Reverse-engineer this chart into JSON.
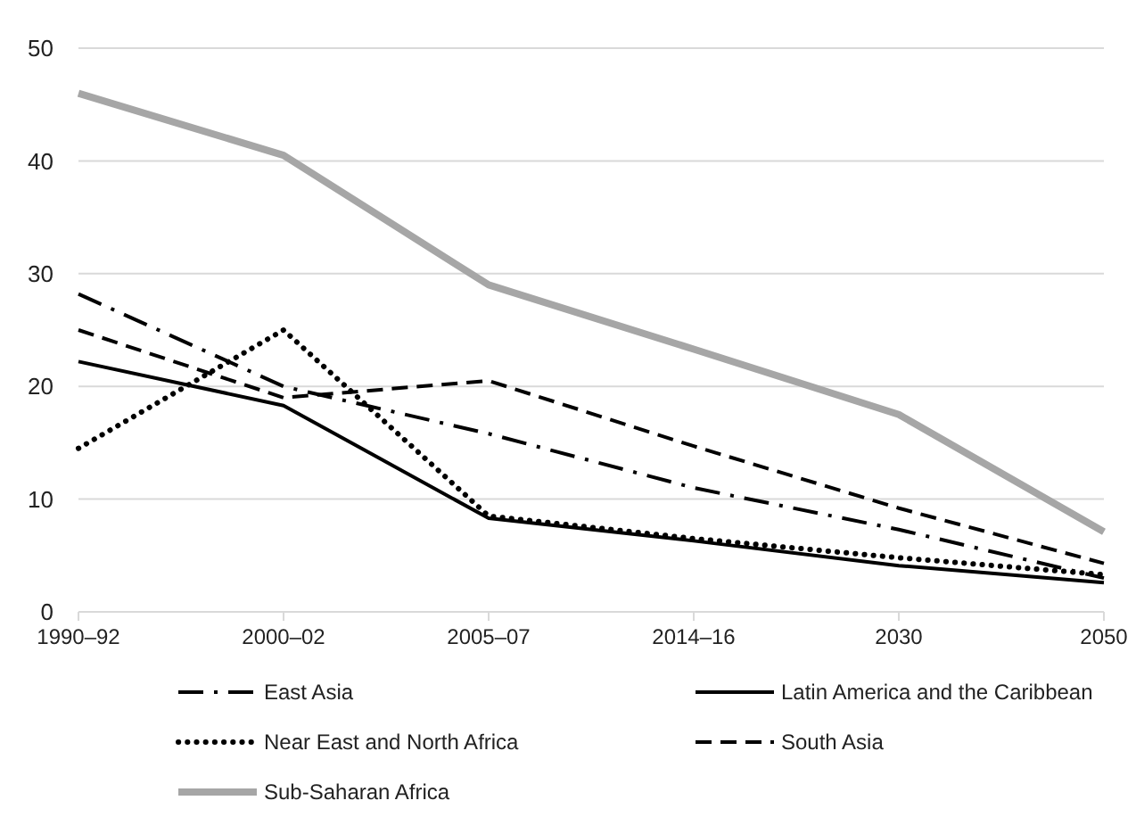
{
  "chart_data": {
    "type": "line",
    "categories": [
      "1990–92",
      "2000–02",
      "2005–07",
      "2014–16",
      "2030",
      "2050"
    ],
    "series": [
      {
        "name": "East Asia",
        "color": "#000000",
        "line_style": "dashdot",
        "values": [
          28.2,
          20,
          15.8,
          11,
          7.3,
          3
        ]
      },
      {
        "name": "Latin America and the Caribbean",
        "color": "#000000",
        "line_style": "solid",
        "values": [
          22.2,
          18.3,
          8.3,
          6.3,
          4.1,
          2.6
        ]
      },
      {
        "name": "Near East and North Africa",
        "color": "#000000",
        "line_style": "dotted",
        "values": [
          14.5,
          25,
          8.5,
          6.5,
          4.8,
          3.3
        ]
      },
      {
        "name": "South Asia",
        "color": "#000000",
        "line_style": "dashed",
        "values": [
          25,
          19,
          20.5,
          14.7,
          9.2,
          4.3
        ]
      },
      {
        "name": "Sub-Saharan Africa",
        "color": "#a6a6a6",
        "line_style": "solid",
        "values": [
          46,
          40.5,
          29,
          23.3,
          17.5,
          7.1
        ]
      }
    ],
    "ylim": [
      0,
      50
    ],
    "yticks": [
      0,
      10,
      20,
      30,
      40,
      50
    ],
    "grid": "y",
    "legend": "bottom",
    "marker": "none"
  }
}
